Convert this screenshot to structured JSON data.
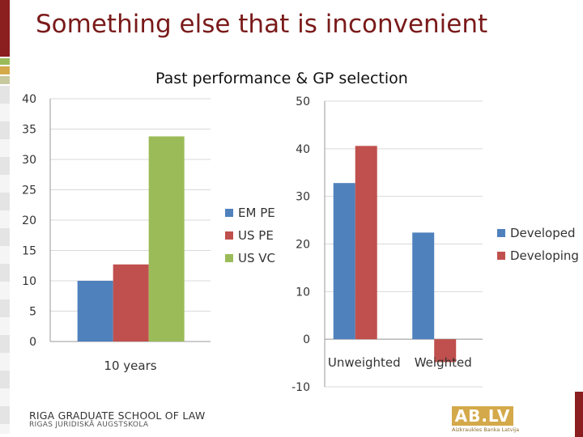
{
  "slide": {
    "title": "Something else that is inconvenient",
    "subtitle": "Past performance & GP selection",
    "footer_school": "RIGA GRADUATE SCHOOL OF LAW",
    "footer_school_local": "RIGAS JURIDISKĀ AUGSTSKOLA",
    "logo_text": "AB.LV",
    "logo_subtext": "Aizkraukles Banka Latvija",
    "colors": {
      "title": "#7A1A1A",
      "blue": "#4F81BD",
      "red": "#C0504D",
      "green": "#9BBB59",
      "accent": "#8B1E1E",
      "logo": "#D4A94A"
    }
  },
  "chart_data": [
    {
      "type": "bar",
      "categories": [
        "10 years"
      ],
      "series": [
        {
          "name": "EM PE",
          "values": [
            10
          ],
          "color": "#4F81BD"
        },
        {
          "name": "US PE",
          "values": [
            12.7
          ],
          "color": "#C0504D"
        },
        {
          "name": "US VC",
          "values": [
            33.8
          ],
          "color": "#9BBB59"
        }
      ],
      "yticks": [
        "0",
        "5",
        "10",
        "15",
        "20",
        "25",
        "30",
        "35",
        "40"
      ],
      "ylim": [
        0,
        40
      ],
      "legend": "right"
    },
    {
      "type": "bar",
      "categories": [
        "Unweighted",
        "Weighted"
      ],
      "series": [
        {
          "name": "Developed",
          "values": [
            32.8,
            22.4
          ],
          "color": "#4F81BD"
        },
        {
          "name": "Developing",
          "values": [
            40.6,
            -4.8
          ],
          "color": "#C0504D"
        }
      ],
      "yticks": [
        "-10",
        "0",
        "10",
        "20",
        "30",
        "40",
        "50"
      ],
      "ylim": [
        -10,
        50
      ],
      "legend": "right"
    }
  ]
}
